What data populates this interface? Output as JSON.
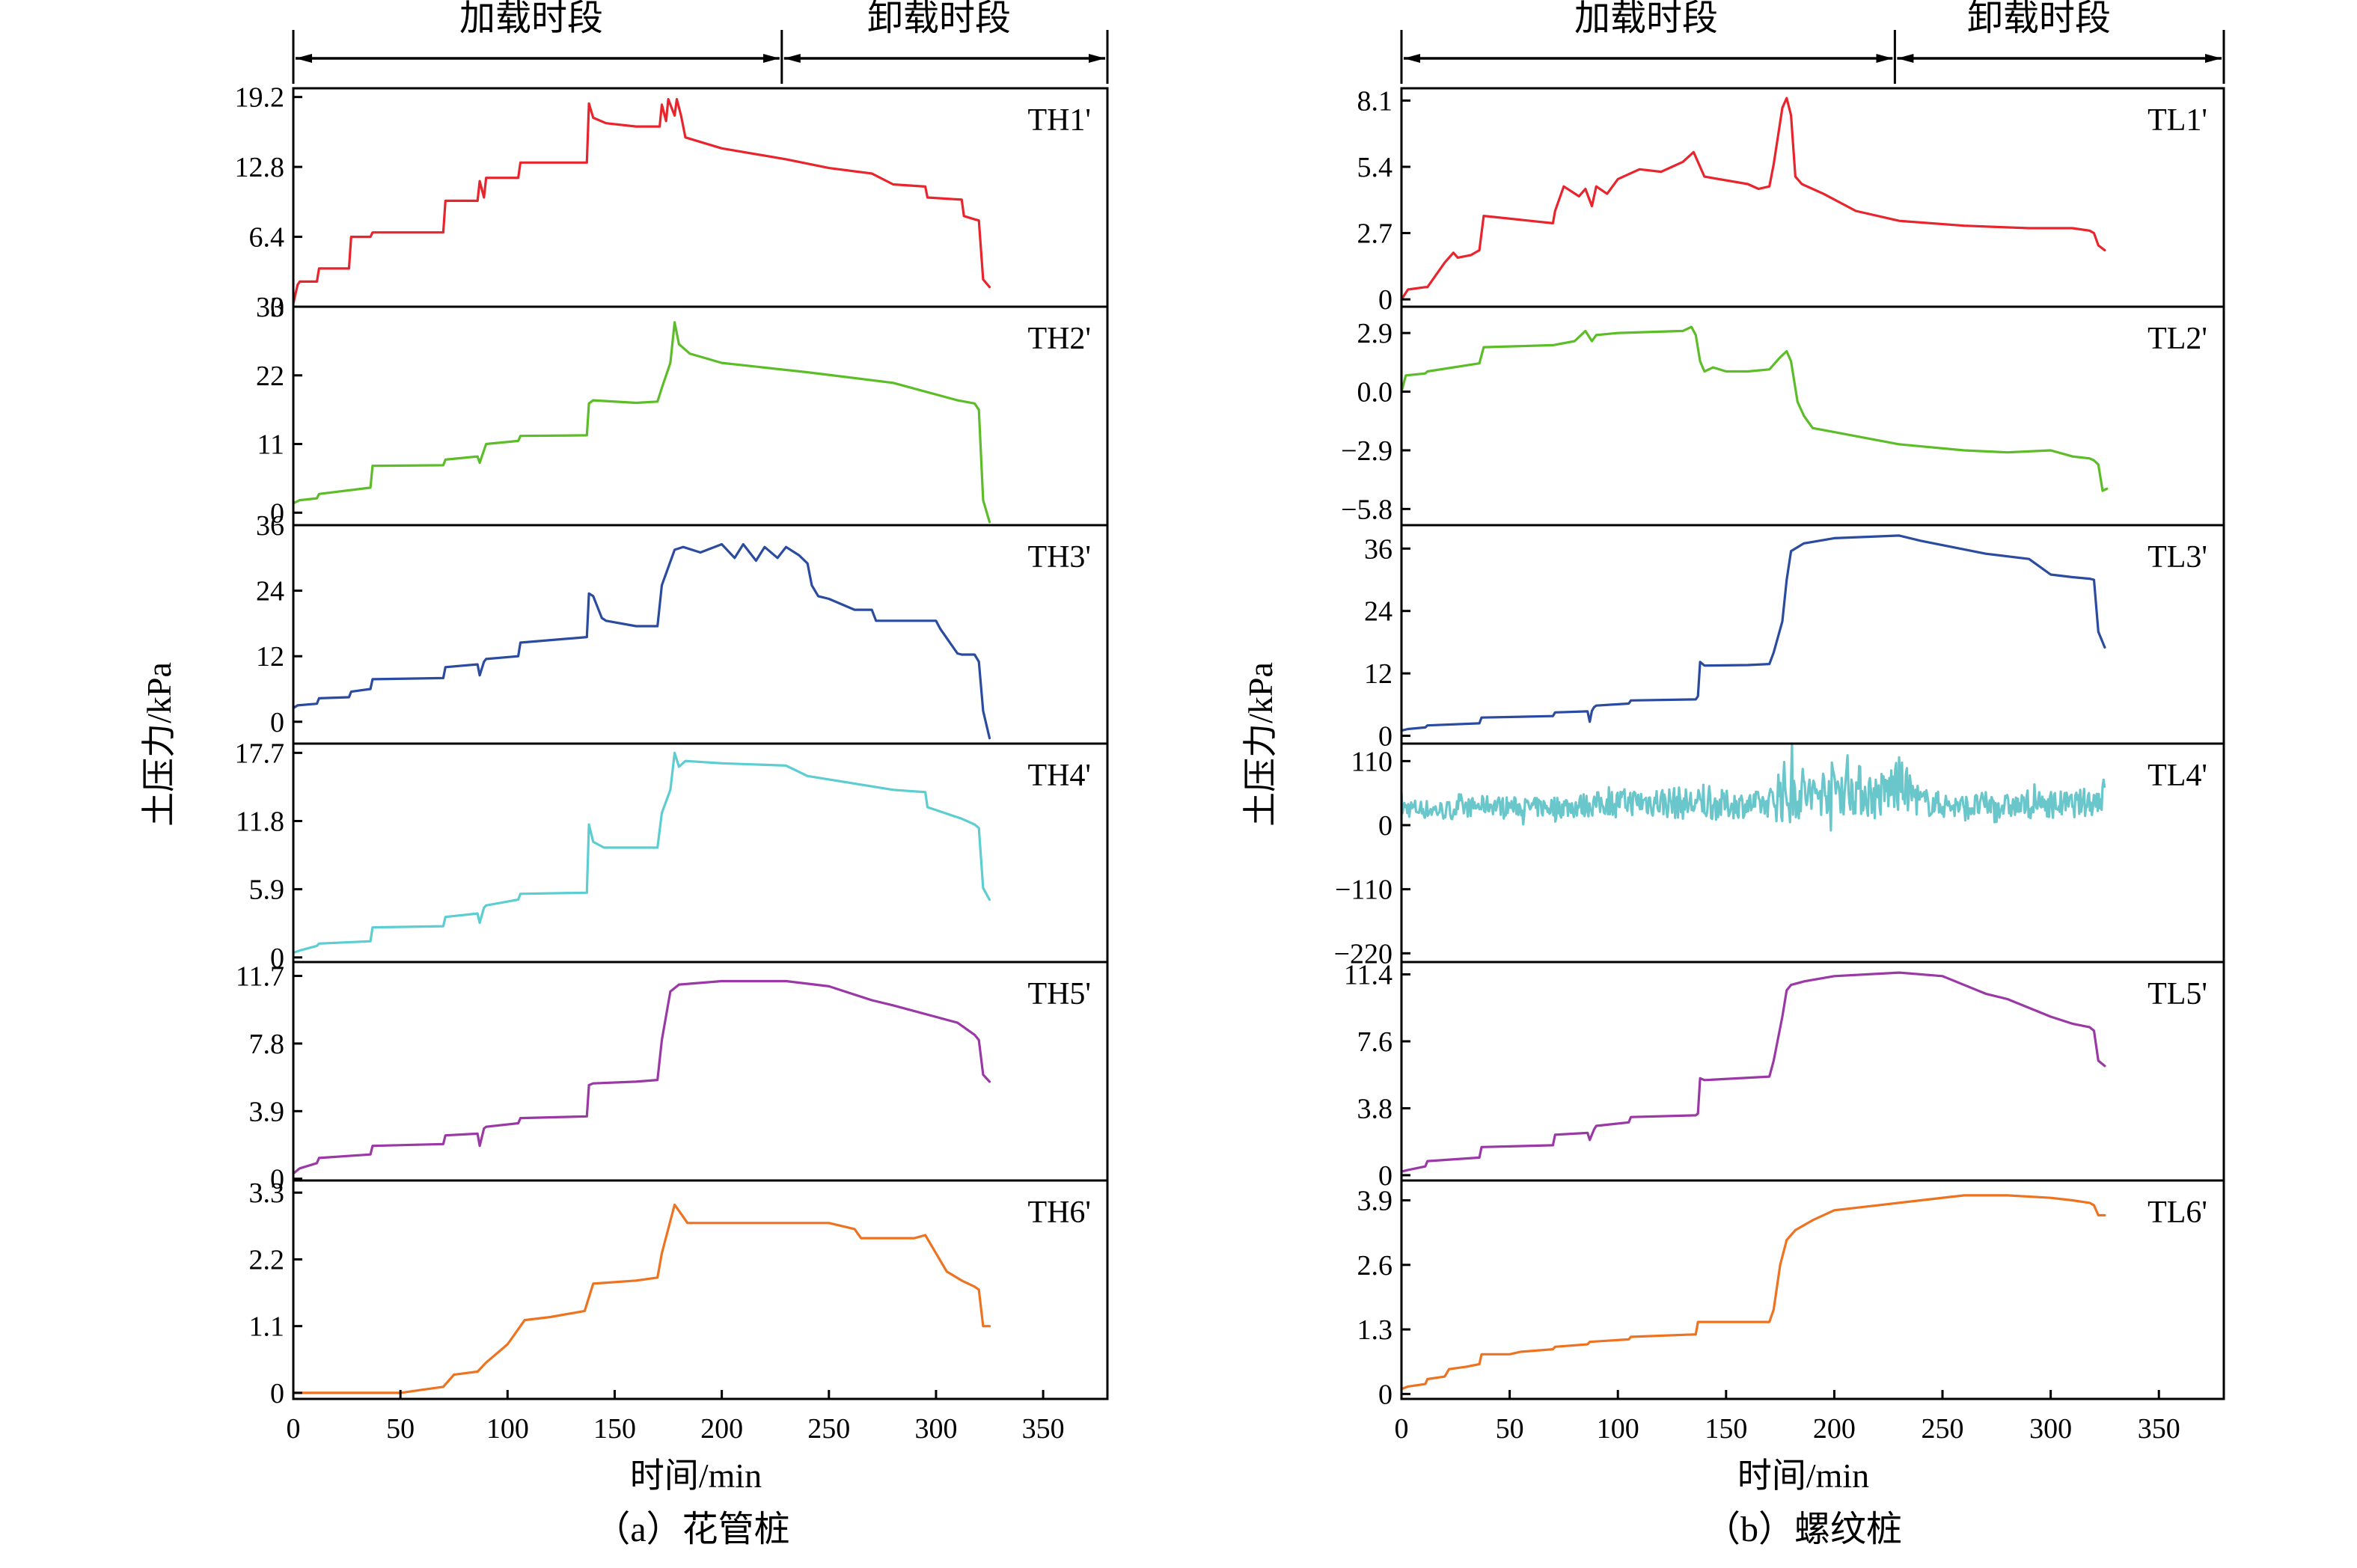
{
  "figure": {
    "phase_labels": [
      "加载时段",
      "卸载时段"
    ],
    "ylabel": "土压力/kPa",
    "xlabel": "时间/min",
    "xticks": [
      0,
      50,
      100,
      150,
      200,
      250,
      300,
      350
    ],
    "xlim": [
      0,
      380
    ],
    "phase_boundary_x": 228,
    "captions": [
      "（a）花管桩",
      "（b）螺纹桩"
    ]
  },
  "chart_data": [
    {
      "type": "line",
      "group": "a",
      "series_name": "TH1'",
      "color": "#e8242c",
      "ylim": [
        0,
        20.0
      ],
      "yticks": [
        "0",
        "6.4",
        "12.8",
        "19.2"
      ],
      "x": [
        0,
        2,
        3,
        11,
        12,
        26,
        27,
        36,
        37,
        70,
        71,
        86,
        87,
        89,
        90,
        105,
        106,
        137,
        138,
        140,
        146,
        160,
        171,
        172,
        174,
        175,
        178,
        179,
        181,
        183,
        200,
        230,
        250,
        270,
        280,
        295,
        296,
        312,
        313,
        318,
        320,
        322,
        325
      ],
      "y": [
        0.3,
        2.0,
        2.3,
        2.3,
        3.5,
        3.5,
        6.4,
        6.4,
        6.8,
        6.8,
        9.7,
        9.7,
        11.5,
        10.0,
        11.8,
        11.8,
        13.2,
        13.2,
        18.6,
        17.3,
        16.8,
        16.5,
        16.5,
        18.5,
        17.0,
        19.0,
        17.5,
        19.0,
        17.5,
        15.5,
        14.5,
        13.5,
        12.7,
        12.2,
        11.2,
        11.0,
        10.0,
        9.8,
        8.3,
        8.0,
        7.9,
        2.5,
        1.8
      ]
    },
    {
      "type": "line",
      "group": "a",
      "series_name": "TH2'",
      "color": "#5cbd29",
      "ylim": [
        -2.0,
        33.0
      ],
      "yticks": [
        "0",
        "11",
        "22",
        "33"
      ],
      "x": [
        0,
        3,
        11,
        12,
        36,
        37,
        70,
        71,
        86,
        87,
        89,
        90,
        105,
        106,
        137,
        138,
        140,
        160,
        170,
        172,
        176,
        178,
        180,
        185,
        200,
        240,
        280,
        310,
        318,
        320,
        322,
        325
      ],
      "y": [
        1.5,
        2.0,
        2.3,
        3.0,
        4.0,
        7.5,
        7.6,
        8.5,
        9.0,
        8.0,
        10.0,
        11.0,
        11.5,
        12.3,
        12.4,
        17.5,
        18.0,
        17.6,
        17.8,
        20.0,
        24.0,
        30.5,
        27.0,
        25.5,
        24.0,
        22.5,
        20.8,
        18.0,
        17.5,
        16.5,
        2.0,
        -1.5
      ]
    },
    {
      "type": "line",
      "group": "a",
      "series_name": "TH3'",
      "color": "#2a4b9f",
      "ylim": [
        -4.0,
        36.0
      ],
      "yticks": [
        "0",
        "12",
        "24",
        "36"
      ],
      "x": [
        0,
        2,
        11,
        12,
        26,
        27,
        36,
        37,
        70,
        71,
        86,
        87,
        89,
        90,
        105,
        106,
        137,
        138,
        140,
        144,
        146,
        160,
        170,
        172,
        178,
        182,
        190,
        200,
        206,
        210,
        216,
        220,
        226,
        230,
        236,
        240,
        242,
        245,
        250,
        262,
        270,
        272,
        300,
        302,
        310,
        312,
        318,
        320,
        322,
        325
      ],
      "y": [
        2.5,
        3.0,
        3.3,
        4.3,
        4.5,
        5.5,
        6.0,
        7.8,
        8.0,
        10.0,
        10.5,
        8.5,
        11.0,
        11.5,
        12.0,
        14.5,
        15.5,
        23.5,
        23.0,
        19.0,
        18.5,
        17.5,
        17.5,
        25.0,
        31.5,
        32.0,
        31.0,
        32.5,
        30.0,
        32.5,
        29.5,
        32.0,
        30.0,
        32.0,
        30.5,
        29.0,
        25.0,
        23.0,
        22.5,
        20.5,
        20.5,
        18.5,
        18.5,
        17.0,
        12.5,
        12.3,
        12.3,
        11.0,
        2.0,
        -3.0
      ]
    },
    {
      "type": "line",
      "group": "a",
      "series_name": "TH4'",
      "color": "#5ccdd1",
      "ylim": [
        -0.4,
        18.5
      ],
      "yticks": [
        "0",
        "5.9",
        "11.8",
        "17.7"
      ],
      "x": [
        0,
        3,
        11,
        12,
        36,
        37,
        70,
        71,
        86,
        87,
        89,
        90,
        105,
        106,
        137,
        138,
        140,
        145,
        170,
        172,
        176,
        178,
        180,
        183,
        200,
        230,
        240,
        280,
        295,
        296,
        312,
        318,
        320,
        322,
        325
      ],
      "y": [
        0.4,
        0.6,
        1.0,
        1.2,
        1.4,
        2.6,
        2.7,
        3.5,
        3.8,
        3.0,
        4.3,
        4.5,
        5.0,
        5.5,
        5.6,
        11.5,
        10.0,
        9.5,
        9.5,
        12.5,
        14.5,
        17.7,
        16.5,
        17.0,
        16.8,
        16.6,
        15.7,
        14.5,
        14.3,
        13.0,
        12.0,
        11.5,
        11.2,
        6.0,
        5.0
      ]
    },
    {
      "type": "line",
      "group": "a",
      "series_name": "TH5'",
      "color": "#9a39a5",
      "ylim": [
        -0.1,
        12.5
      ],
      "yticks": [
        "0",
        "3.9",
        "7.8",
        "11.7"
      ],
      "x": [
        0,
        3,
        11,
        12,
        36,
        37,
        70,
        71,
        86,
        87,
        89,
        90,
        105,
        106,
        137,
        138,
        140,
        160,
        170,
        172,
        176,
        180,
        200,
        230,
        250,
        270,
        280,
        310,
        318,
        320,
        322,
        325
      ],
      "y": [
        0.3,
        0.6,
        0.9,
        1.2,
        1.4,
        1.9,
        2.0,
        2.5,
        2.6,
        1.9,
        2.9,
        3.0,
        3.2,
        3.5,
        3.6,
        5.4,
        5.5,
        5.6,
        5.7,
        8.0,
        10.8,
        11.2,
        11.4,
        11.4,
        11.1,
        10.3,
        10.0,
        9.0,
        8.3,
        8.0,
        6.0,
        5.6
      ]
    },
    {
      "type": "line",
      "group": "a",
      "series_name": "TH6'",
      "color": "#ed7320",
      "ylim": [
        -0.1,
        3.5
      ],
      "yticks": [
        "0",
        "1.1",
        "2.2",
        "3.3"
      ],
      "x": [
        0,
        50,
        60,
        70,
        75,
        86,
        90,
        100,
        106,
        108,
        120,
        136,
        140,
        160,
        170,
        172,
        178,
        180,
        184,
        200,
        230,
        250,
        262,
        265,
        290,
        295,
        300,
        305,
        312,
        318,
        320,
        322,
        325
      ],
      "y": [
        0.0,
        0.0,
        0.05,
        0.1,
        0.3,
        0.35,
        0.5,
        0.8,
        1.1,
        1.2,
        1.25,
        1.35,
        1.8,
        1.85,
        1.9,
        2.3,
        3.1,
        3.0,
        2.8,
        2.8,
        2.8,
        2.8,
        2.7,
        2.55,
        2.55,
        2.6,
        2.3,
        2.0,
        1.85,
        1.75,
        1.7,
        1.1,
        1.1
      ]
    },
    {
      "type": "line",
      "group": "b",
      "series_name": "TL1'",
      "color": "#e8242c",
      "ylim": [
        -0.3,
        8.6
      ],
      "yticks": [
        "0",
        "2.7",
        "5.4",
        "8.1"
      ],
      "x": [
        0,
        3,
        11,
        12,
        20,
        24,
        26,
        32,
        36,
        38,
        70,
        71,
        75,
        82,
        85,
        88,
        90,
        95,
        100,
        105,
        110,
        120,
        125,
        130,
        135,
        140,
        160,
        165,
        170,
        172,
        176,
        178,
        180,
        182,
        185,
        195,
        210,
        230,
        260,
        290,
        310,
        318,
        320,
        322,
        325
      ],
      "y": [
        0.0,
        0.4,
        0.5,
        0.5,
        1.5,
        1.9,
        1.7,
        1.8,
        2.0,
        3.4,
        3.1,
        3.6,
        4.6,
        4.2,
        4.5,
        3.8,
        4.6,
        4.3,
        4.9,
        5.1,
        5.3,
        5.2,
        5.4,
        5.6,
        6.0,
        5.0,
        4.7,
        4.5,
        4.6,
        5.5,
        7.8,
        8.2,
        7.5,
        5.0,
        4.7,
        4.3,
        3.6,
        3.2,
        3.0,
        2.9,
        2.9,
        2.8,
        2.7,
        2.2,
        2.0
      ]
    },
    {
      "type": "line",
      "group": "b",
      "series_name": "TL2'",
      "color": "#5cbd29",
      "ylim": [
        -6.6,
        4.2
      ],
      "yticks": [
        "−5.8",
        "−2.9",
        "0.0",
        "2.9"
      ],
      "x": [
        0,
        2,
        11,
        12,
        36,
        38,
        70,
        80,
        85,
        88,
        90,
        100,
        130,
        134,
        136,
        138,
        140,
        144,
        150,
        160,
        170,
        175,
        178,
        180,
        183,
        186,
        190,
        200,
        230,
        260,
        280,
        300,
        310,
        318,
        320,
        322,
        324,
        326
      ],
      "y": [
        0.0,
        0.8,
        0.9,
        1.0,
        1.4,
        2.2,
        2.3,
        2.5,
        3.0,
        2.5,
        2.8,
        2.9,
        3.0,
        3.2,
        2.8,
        1.5,
        1.0,
        1.2,
        1.0,
        1.0,
        1.1,
        1.7,
        2.0,
        1.5,
        -0.5,
        -1.2,
        -1.8,
        -2.0,
        -2.6,
        -2.9,
        -3.0,
        -2.9,
        -3.2,
        -3.3,
        -3.4,
        -3.6,
        -4.9,
        -4.8
      ]
    },
    {
      "type": "line",
      "group": "b",
      "series_name": "TL3'",
      "color": "#2a4b9f",
      "ylim": [
        -1.5,
        40.5
      ],
      "yticks": [
        "0",
        "12",
        "24",
        "36"
      ],
      "x": [
        0,
        3,
        11,
        12,
        36,
        37,
        70,
        71,
        86,
        87,
        88,
        89,
        90,
        105,
        106,
        136,
        137,
        138,
        140,
        160,
        170,
        172,
        176,
        178,
        180,
        186,
        200,
        230,
        240,
        270,
        290,
        300,
        310,
        318,
        320,
        322,
        325
      ],
      "y": [
        1.0,
        1.3,
        1.6,
        2.0,
        2.4,
        3.5,
        3.8,
        4.5,
        4.7,
        2.7,
        4.8,
        5.5,
        5.8,
        6.2,
        6.8,
        7.0,
        7.6,
        14.2,
        13.5,
        13.6,
        13.8,
        16.0,
        22.0,
        30.0,
        35.5,
        37.0,
        38.0,
        38.5,
        37.5,
        35.0,
        34.0,
        31.0,
        30.5,
        30.2,
        30.0,
        20.0,
        17.0
      ]
    },
    {
      "type": "line",
      "group": "b",
      "series_name": "TL4'",
      "color": "#69c7cb",
      "ylim": [
        -235,
        140
      ],
      "yticks": [
        "−220",
        "−110",
        "0",
        "110"
      ],
      "x": [
        0,
        20,
        40,
        60,
        80,
        100,
        120,
        140,
        160,
        170,
        175,
        180,
        185,
        190,
        200,
        210,
        220,
        230,
        240,
        250,
        260,
        270,
        280,
        290,
        300,
        310,
        320,
        325
      ],
      "band_min": [
        0,
        -5,
        5,
        0,
        -5,
        0,
        -10,
        -15,
        -5,
        -5,
        -45,
        -35,
        -30,
        -20,
        -15,
        -20,
        -25,
        -10,
        -5,
        -5,
        -10,
        -5,
        -5,
        -5,
        -5,
        -5,
        -5,
        -5
      ],
      "band_max": [
        60,
        55,
        65,
        60,
        70,
        80,
        90,
        85,
        75,
        80,
        160,
        150,
        145,
        120,
        150,
        145,
        120,
        155,
        85,
        75,
        70,
        75,
        70,
        70,
        80,
        75,
        90,
        110
      ]
    },
    {
      "type": "line",
      "group": "b",
      "series_name": "TL5'",
      "color": "#9a39a5",
      "ylim": [
        -0.3,
        12.1
      ],
      "yticks": [
        "0",
        "3.8",
        "7.6",
        "11.4"
      ],
      "x": [
        0,
        3,
        11,
        12,
        36,
        37,
        70,
        71,
        86,
        87,
        89,
        90,
        105,
        106,
        136,
        137,
        138,
        140,
        170,
        172,
        176,
        178,
        180,
        186,
        200,
        230,
        250,
        270,
        280,
        300,
        310,
        318,
        320,
        322,
        325
      ],
      "y": [
        0.2,
        0.3,
        0.5,
        0.8,
        1.0,
        1.6,
        1.7,
        2.3,
        2.4,
        2.0,
        2.6,
        2.8,
        3.0,
        3.3,
        3.4,
        3.5,
        5.5,
        5.4,
        5.6,
        6.5,
        9.0,
        10.5,
        10.8,
        11.0,
        11.3,
        11.5,
        11.3,
        10.3,
        10.0,
        9.0,
        8.6,
        8.4,
        8.2,
        6.5,
        6.2
      ]
    },
    {
      "type": "line",
      "group": "b",
      "series_name": "TL6'",
      "color": "#ed7320",
      "ylim": [
        -0.1,
        4.3
      ],
      "yticks": [
        "0",
        "1.3",
        "2.6",
        "3.9"
      ],
      "x": [
        0,
        3,
        11,
        12,
        20,
        22,
        30,
        36,
        37,
        50,
        55,
        70,
        71,
        86,
        87,
        105,
        106,
        136,
        137,
        140,
        170,
        172,
        175,
        178,
        182,
        190,
        200,
        220,
        240,
        260,
        280,
        300,
        310,
        318,
        320,
        322,
        325
      ],
      "y": [
        0.1,
        0.15,
        0.2,
        0.3,
        0.35,
        0.5,
        0.55,
        0.6,
        0.8,
        0.8,
        0.85,
        0.9,
        0.95,
        1.0,
        1.05,
        1.1,
        1.15,
        1.2,
        1.45,
        1.45,
        1.45,
        1.7,
        2.6,
        3.1,
        3.3,
        3.5,
        3.7,
        3.8,
        3.9,
        4.0,
        4.0,
        3.95,
        3.9,
        3.85,
        3.8,
        3.6,
        3.6
      ]
    }
  ]
}
